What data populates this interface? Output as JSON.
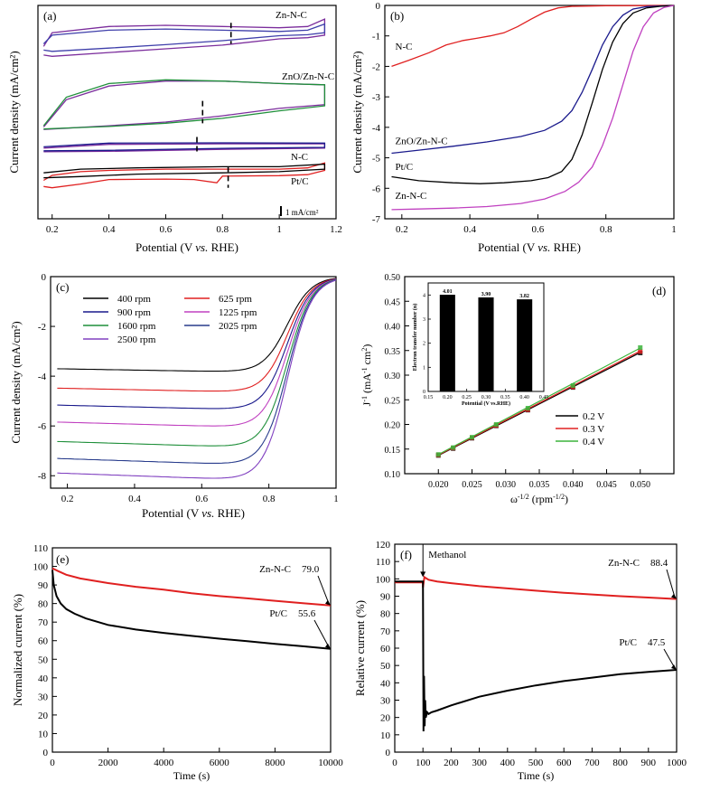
{
  "figure": {
    "panels": [
      {
        "id": "a",
        "label": "(a)"
      },
      {
        "id": "b",
        "label": "(b)"
      },
      {
        "id": "c",
        "label": "(c)"
      },
      {
        "id": "d",
        "label": "(d)"
      },
      {
        "id": "e",
        "label": "(e)"
      },
      {
        "id": "f",
        "label": "(f)"
      }
    ]
  },
  "chart_data": [
    {
      "panel": "a",
      "type": "line",
      "xlabel_parts": [
        "Potential (V ",
        "vs.",
        " RHE)"
      ],
      "ylabel": "Current density (mA/cm²)",
      "xlim": [
        0.15,
        1.2
      ],
      "xticks": [
        0.2,
        0.4,
        0.6,
        0.8,
        1.0,
        1.2
      ],
      "yticks_shown": false,
      "scale_bar_label": "1 mA/cm²",
      "colors": {
        "O2": "#7b2d9c",
        "N2_zn": "#3f3faa",
        "N2_znon": "#1f8f3a",
        "N2_nc": "#1a1a8c",
        "N2_pt": "#e02020"
      },
      "loops": [
        {
          "name": "Zn-N-C",
          "label": "Zn-N-C",
          "peak_potential": 0.83,
          "series": [
            {
              "key": "O2",
              "x": [
                0.17,
                0.2,
                0.4,
                0.6,
                0.8,
                1.0,
                1.1,
                1.16,
                1.16,
                1.1,
                1.0,
                0.8,
                0.6,
                0.4,
                0.2,
                0.17
              ],
              "y": [
                6.95,
                7.5,
                7.75,
                7.8,
                7.75,
                7.7,
                7.75,
                8.05,
                7.4,
                7.3,
                7.25,
                7.0,
                6.85,
                6.7,
                6.55,
                6.6
              ]
            },
            {
              "key": "N2_zn",
              "x": [
                0.17,
                0.2,
                0.4,
                0.6,
                0.8,
                1.0,
                1.1,
                1.16,
                1.16,
                1.1,
                1.0,
                0.8,
                0.6,
                0.4,
                0.2,
                0.17
              ],
              "y": [
                7.05,
                7.4,
                7.6,
                7.65,
                7.6,
                7.55,
                7.6,
                7.85,
                7.5,
                7.42,
                7.38,
                7.18,
                7.02,
                6.88,
                6.75,
                6.8
              ]
            }
          ]
        },
        {
          "name": "ZnO/Zn-N-C",
          "label": "ZnO/Zn-N-C",
          "peak_potential": 0.73,
          "series": [
            {
              "key": "O2",
              "x": [
                0.17,
                0.25,
                0.4,
                0.6,
                0.8,
                1.0,
                1.16,
                1.16,
                1.0,
                0.8,
                0.6,
                0.4,
                0.25,
                0.17
              ],
              "y": [
                3.7,
                4.8,
                5.35,
                5.55,
                5.55,
                5.45,
                5.4,
                4.6,
                4.45,
                4.15,
                3.9,
                3.75,
                3.65,
                3.6
              ]
            },
            {
              "key": "N2_znon",
              "x": [
                0.17,
                0.25,
                0.4,
                0.6,
                0.8,
                1.0,
                1.16,
                1.16,
                1.0,
                0.8,
                0.6,
                0.4,
                0.25,
                0.17
              ],
              "y": [
                3.75,
                4.9,
                5.45,
                5.6,
                5.55,
                5.45,
                5.4,
                4.55,
                4.35,
                4.05,
                3.85,
                3.72,
                3.66,
                3.62
              ]
            }
          ]
        },
        {
          "name": "N-C",
          "label": "N-C",
          "peak_potential": 0.71,
          "series": [
            {
              "key": "O2",
              "x": [
                0.17,
                0.4,
                0.8,
                1.16,
                1.16,
                0.8,
                0.4,
                0.17
              ],
              "y": [
                2.85,
                3.0,
                3.02,
                3.02,
                2.85,
                2.8,
                2.72,
                2.7
              ]
            },
            {
              "key": "N2_nc",
              "x": [
                0.17,
                0.4,
                0.8,
                1.16,
                1.16,
                0.8,
                0.4,
                0.17
              ],
              "y": [
                2.9,
                3.05,
                3.06,
                3.05,
                2.88,
                2.84,
                2.76,
                2.74
              ]
            }
          ]
        },
        {
          "name": "Pt/C",
          "label": "Pt/C",
          "peak_potential": 0.82,
          "series": [
            {
              "key": "N2_pt",
              "x": [
                0.17,
                0.2,
                0.3,
                0.4,
                0.6,
                0.8,
                1.0,
                1.1,
                1.16,
                1.16,
                1.1,
                1.0,
                0.8,
                0.78,
                0.7,
                0.6,
                0.4,
                0.3,
                0.2,
                0.17
              ],
              "y": [
                1.55,
                1.75,
                1.9,
                1.95,
                2.0,
                2.0,
                2.0,
                2.05,
                2.25,
                1.95,
                1.78,
                1.74,
                1.72,
                1.45,
                1.58,
                1.6,
                1.58,
                1.4,
                1.25,
                1.3
              ]
            },
            {
              "key": "O2_pt",
              "x": [
                0.17,
                0.3,
                0.5,
                0.8,
                1.0,
                1.16,
                1.16,
                1.0,
                0.8,
                0.5,
                0.3,
                0.17
              ],
              "y": [
                1.85,
                2.0,
                2.05,
                2.1,
                2.1,
                2.2,
                2.0,
                1.9,
                1.85,
                1.8,
                1.7,
                1.65
              ]
            }
          ]
        }
      ]
    },
    {
      "panel": "b",
      "type": "line",
      "xlabel_parts": [
        "Potential (V ",
        "vs.",
        " RHE)"
      ],
      "ylabel": "Current density (mA/cm²)",
      "xlim": [
        0.15,
        1.0
      ],
      "ylim": [
        -7,
        0
      ],
      "xticks": [
        0.2,
        0.4,
        0.6,
        0.8,
        1.0
      ],
      "yticks": [
        -7,
        -6,
        -5,
        -4,
        -3,
        -2,
        -1,
        0
      ],
      "series": [
        {
          "name": "N-C",
          "color": "#e02020",
          "x": [
            0.17,
            0.22,
            0.28,
            0.33,
            0.38,
            0.42,
            0.46,
            0.5,
            0.54,
            0.58,
            0.62,
            0.66,
            0.7,
            0.75,
            0.8,
            0.9,
            1.0
          ],
          "y": [
            -2.0,
            -1.8,
            -1.55,
            -1.3,
            -1.15,
            -1.08,
            -1.0,
            -0.9,
            -0.7,
            -0.45,
            -0.22,
            -0.08,
            -0.03,
            -0.02,
            -0.01,
            -0.005,
            0.0
          ]
        },
        {
          "name": "ZnO/Zn-N-C",
          "color": "#1a1a8c",
          "x": [
            0.17,
            0.25,
            0.35,
            0.45,
            0.55,
            0.62,
            0.67,
            0.7,
            0.73,
            0.76,
            0.79,
            0.82,
            0.85,
            0.88,
            0.92,
            0.96,
            1.0
          ],
          "y": [
            -4.85,
            -4.75,
            -4.62,
            -4.48,
            -4.3,
            -4.1,
            -3.8,
            -3.45,
            -2.85,
            -2.1,
            -1.3,
            -0.7,
            -0.32,
            -0.12,
            -0.04,
            -0.02,
            0.0
          ]
        },
        {
          "name": "Pt/C",
          "color": "#000000",
          "x": [
            0.17,
            0.25,
            0.35,
            0.43,
            0.5,
            0.58,
            0.63,
            0.67,
            0.7,
            0.73,
            0.76,
            0.79,
            0.82,
            0.85,
            0.88,
            0.92,
            0.96,
            1.0
          ],
          "y": [
            -5.62,
            -5.75,
            -5.82,
            -5.85,
            -5.82,
            -5.75,
            -5.65,
            -5.45,
            -5.05,
            -4.25,
            -3.2,
            -2.1,
            -1.2,
            -0.6,
            -0.25,
            -0.08,
            -0.03,
            0.0
          ]
        },
        {
          "name": "Zn-N-C",
          "color": "#c040c0",
          "x": [
            0.17,
            0.25,
            0.35,
            0.45,
            0.55,
            0.62,
            0.68,
            0.72,
            0.76,
            0.79,
            0.82,
            0.85,
            0.88,
            0.91,
            0.94,
            0.97,
            1.0
          ],
          "y": [
            -6.7,
            -6.68,
            -6.65,
            -6.6,
            -6.5,
            -6.35,
            -6.1,
            -5.8,
            -5.3,
            -4.6,
            -3.7,
            -2.6,
            -1.5,
            -0.7,
            -0.25,
            -0.07,
            0.0
          ]
        }
      ],
      "labels": [
        {
          "text": "N-C",
          "x": 0.17,
          "y": -1.45
        },
        {
          "text": "ZnO/Zn-N-C",
          "x": 0.17,
          "y": -4.55
        },
        {
          "text": "Pt/C",
          "x": 0.17,
          "y": -5.4
        },
        {
          "text": "Zn-N-C",
          "x": 0.17,
          "y": -6.35
        }
      ]
    },
    {
      "panel": "c",
      "type": "line",
      "xlabel_parts": [
        "Potential (V ",
        "vs.",
        " RHE)"
      ],
      "ylabel": "Current density (mA/cm²)",
      "xlim": [
        0.15,
        1.0
      ],
      "ylim": [
        -8.5,
        0
      ],
      "xticks": [
        0.2,
        0.4,
        0.6,
        0.8,
        1.0
      ],
      "yticks": [
        -8,
        -6,
        -4,
        -2,
        0
      ],
      "legend_position": "top-left",
      "series": [
        {
          "name": "400 rpm",
          "color": "#000000",
          "limit": -3.8
        },
        {
          "name": "625 rpm",
          "color": "#e02020",
          "limit": -4.6
        },
        {
          "name": "900 rpm",
          "color": "#1a1a8c",
          "limit": -5.3
        },
        {
          "name": "1225 rpm",
          "color": "#c040c0",
          "limit": -6.0
        },
        {
          "name": "1600 rpm",
          "color": "#1f8f3a",
          "limit": -6.8
        },
        {
          "name": "2025 rpm",
          "color": "#283c8c",
          "limit": -7.5
        },
        {
          "name": "2500 rpm",
          "color": "#8040c0",
          "limit": -8.1
        }
      ]
    },
    {
      "panel": "d",
      "type": "scatter",
      "xlabel_parts": [
        "ω",
        "-1/2",
        " (rpm",
        "-1/2",
        ")"
      ],
      "ylabel_parts": [
        "J",
        "-1",
        " (mA",
        "-1",
        " cm",
        "2",
        ")"
      ],
      "xlim": [
        0.015,
        0.055
      ],
      "ylim": [
        0.1,
        0.5
      ],
      "xticks": [
        0.02,
        0.025,
        0.03,
        0.035,
        0.04,
        0.045,
        0.05
      ],
      "xtick_labels": [
        "0.020",
        "0.025",
        "0.030",
        "0.035",
        "0.040",
        "0.045",
        "0.050"
      ],
      "yticks": [
        0.1,
        0.15,
        0.2,
        0.25,
        0.3,
        0.35,
        0.4,
        0.45,
        0.5
      ],
      "ytick_labels": [
        "0.10",
        "0.15",
        "0.20",
        "0.25",
        "0.30",
        "0.35",
        "0.40",
        "0.45",
        "0.50"
      ],
      "legend_position": "bottom-right",
      "x": [
        0.02,
        0.0222,
        0.025,
        0.0286,
        0.0333,
        0.04,
        0.05
      ],
      "series": [
        {
          "name": "0.2 V",
          "color": "#000000",
          "y": [
            0.137,
            0.151,
            0.172,
            0.197,
            0.229,
            0.275,
            0.345
          ],
          "fit": [
            0.137,
            0.346
          ]
        },
        {
          "name": "0.3 V",
          "color": "#e02020",
          "y": [
            0.138,
            0.152,
            0.173,
            0.198,
            0.23,
            0.276,
            0.348
          ],
          "fit": [
            0.138,
            0.349
          ]
        },
        {
          "name": "0.4 V",
          "color": "#3cb43c",
          "y": [
            0.139,
            0.153,
            0.174,
            0.2,
            0.233,
            0.279,
            0.356
          ],
          "fit": [
            0.139,
            0.355
          ]
        }
      ],
      "inset": {
        "type": "bar",
        "xlabel": "Potential (V vs.RHE)",
        "ylabel": "Electron transfer number (n)",
        "xlim": [
          0.15,
          0.45
        ],
        "ylim": [
          0,
          4.5
        ],
        "xticks": [
          0.15,
          0.2,
          0.25,
          0.3,
          0.35,
          0.4,
          0.45
        ],
        "xtick_labels": [
          "0.15",
          "0.20",
          "0.25",
          "0.30",
          "0.35",
          "0.40",
          "0.45"
        ],
        "yticks": [
          0,
          1,
          2,
          3,
          4
        ],
        "categories": [
          0.2,
          0.3,
          0.4
        ],
        "values": [
          4.01,
          3.9,
          3.82
        ],
        "value_labels": [
          "4.01",
          "3.90",
          "3.82"
        ]
      }
    },
    {
      "panel": "e",
      "type": "line",
      "xlabel": "Time (s)",
      "ylabel": "Normalized current (%)",
      "xlim": [
        0,
        10000
      ],
      "ylim": [
        0,
        110
      ],
      "xticks": [
        0,
        2000,
        4000,
        6000,
        8000,
        10000
      ],
      "yticks": [
        0,
        10,
        20,
        30,
        40,
        50,
        60,
        70,
        80,
        90,
        100,
        110
      ],
      "series": [
        {
          "name": "Zn-N-C",
          "label": "Zn-N-C",
          "color": "#e02020",
          "final_label": "79.0",
          "x": [
            0,
            200,
            500,
            1000,
            2000,
            3000,
            4000,
            5000,
            6000,
            7000,
            8000,
            9000,
            10000
          ],
          "y": [
            99,
            97.5,
            95.5,
            93.5,
            91,
            89,
            87.5,
            85.5,
            84,
            82.8,
            81.5,
            80.2,
            79
          ]
        },
        {
          "name": "Pt/C",
          "label": "Pt/C",
          "color": "#000000",
          "final_label": "55.6",
          "x": [
            0,
            50,
            150,
            300,
            500,
            800,
            1200,
            2000,
            3000,
            4000,
            5000,
            6000,
            7000,
            8000,
            9000,
            10000
          ],
          "y": [
            98,
            90,
            84,
            80,
            77,
            74.5,
            72,
            68.5,
            66,
            64.2,
            62.6,
            61.1,
            59.7,
            58.3,
            57,
            55.6
          ]
        }
      ]
    },
    {
      "panel": "f",
      "type": "line",
      "xlabel": "Time (s)",
      "ylabel": "Relative current (%)",
      "xlim": [
        0,
        1000
      ],
      "ylim": [
        0,
        120
      ],
      "xticks": [
        0,
        100,
        200,
        300,
        400,
        500,
        600,
        700,
        800,
        900,
        1000
      ],
      "yticks": [
        0,
        10,
        20,
        30,
        40,
        50,
        60,
        70,
        80,
        90,
        100,
        110,
        120
      ],
      "annotation": "Methanol",
      "annotation_time": 100,
      "series": [
        {
          "name": "Zn-N-C",
          "label": "Zn-N-C",
          "color": "#e02020",
          "final_label": "88.4",
          "x": [
            0,
            100,
            100,
            105,
            110,
            120,
            150,
            200,
            300,
            400,
            500,
            600,
            700,
            800,
            900,
            1000
          ],
          "y": [
            98,
            98,
            95,
            101,
            100.5,
            99.5,
            98.5,
            97.5,
            95.8,
            94.5,
            93.2,
            92,
            91,
            90,
            89.2,
            88.4
          ]
        },
        {
          "name": "Pt/C",
          "label": "Pt/C",
          "color": "#000000",
          "final_label": "47.5",
          "x": [
            0,
            100,
            102,
            104,
            106,
            108,
            110,
            115,
            120,
            130,
            150,
            200,
            300,
            400,
            500,
            600,
            700,
            800,
            900,
            1000
          ],
          "y": [
            98.5,
            98.5,
            12,
            44,
            15,
            30,
            20,
            23,
            22,
            23,
            24,
            27,
            32,
            35.5,
            38.5,
            41,
            43,
            45,
            46.3,
            47.5
          ]
        }
      ]
    }
  ]
}
